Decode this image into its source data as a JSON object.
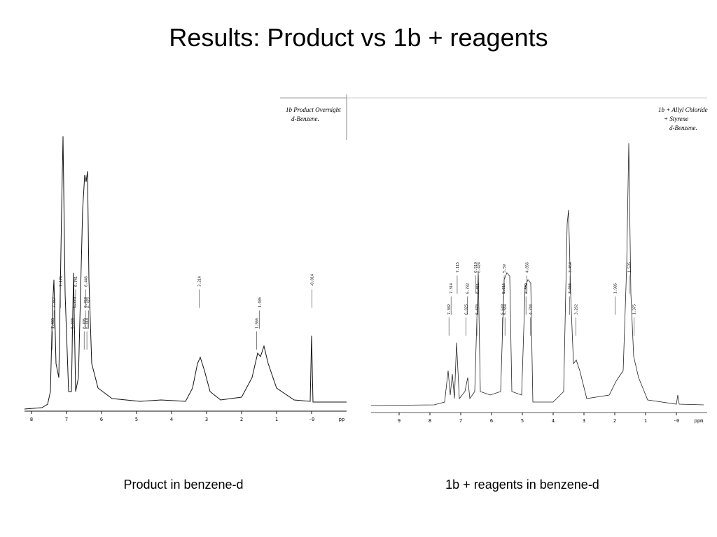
{
  "title": "Results: Product vs 1b + reagents",
  "panels": [
    {
      "caption": "Product in benzene-d",
      "note": [
        "1b Product Overnight",
        "d-Benzene."
      ],
      "unit": "pp",
      "xticks": [
        8,
        7,
        6,
        5,
        4,
        3,
        2,
        1,
        {
          "value": 0,
          "label": "-0"
        }
      ],
      "peaks": [
        7.405,
        7.357,
        7.174,
        6.838,
        6.778,
        6.741,
        6.496,
        6.458,
        6.446,
        6.418,
        6.372,
        3.214,
        1.566,
        1.486,
        -0.014
      ]
    },
    {
      "caption": "1b + reagents in benzene-d",
      "note": [
        "1b + Allyl Chloride",
        "+ Styrene",
        "d-Benzene."
      ],
      "unit": "ppm",
      "xticks": [
        9,
        8,
        7,
        6,
        5,
        4,
        3,
        2,
        1,
        {
          "value": 0,
          "label": "-0"
        }
      ],
      "peaks": [
        7.382,
        7.314,
        7.115,
        6.825,
        6.782,
        6.519,
        6.474,
        6.451,
        6.424,
        5.648,
        5.616,
        5.59,
        5.564,
        4.882,
        4.856,
        4.744,
        3.466,
        3.454,
        3.262,
        1.985,
        1.535,
        1.375
      ]
    }
  ]
}
